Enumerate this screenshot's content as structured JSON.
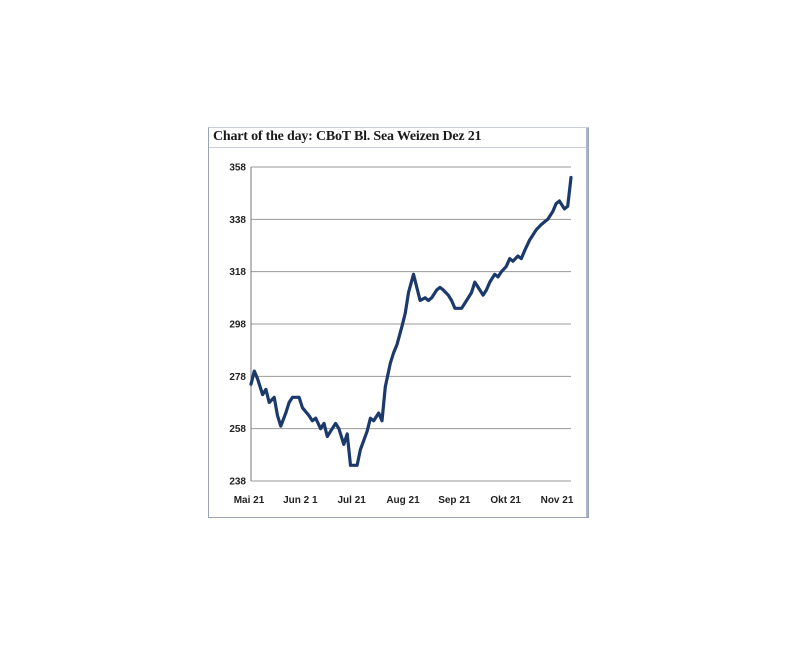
{
  "chart_data": {
    "type": "line",
    "title": "Chart of the day: CBoT Bl. Sea Weizen Dez 21",
    "xlabel": "",
    "ylabel": "",
    "ylim": [
      238,
      358
    ],
    "yticks": [
      238,
      258,
      278,
      298,
      318,
      338,
      358
    ],
    "ytick_labels": [
      "238",
      "258",
      "278",
      "298",
      "318",
      "338",
      "358"
    ],
    "xtick_labels": [
      "Mai 21",
      "Jun 2 1",
      "Jul 21",
      "Aug 21",
      "Sep 21",
      "Okt 21",
      "Nov 21"
    ],
    "grid": "horizontal",
    "line_color": "#1b3a6b",
    "series": [
      {
        "x": [
          "2021-05-03",
          "2021-05-05",
          "2021-05-07",
          "2021-05-10",
          "2021-05-12",
          "2021-05-14",
          "2021-05-17",
          "2021-05-19",
          "2021-05-21",
          "2021-05-24",
          "2021-05-26",
          "2021-05-28",
          "2021-06-01",
          "2021-06-03",
          "2021-06-07",
          "2021-06-09",
          "2021-06-11",
          "2021-06-14",
          "2021-06-16",
          "2021-06-18",
          "2021-06-21",
          "2021-06-23",
          "2021-06-25",
          "2021-06-28",
          "2021-06-30",
          "2021-07-02",
          "2021-07-06",
          "2021-07-08",
          "2021-07-12",
          "2021-07-14",
          "2021-07-16",
          "2021-07-19",
          "2021-07-21",
          "2021-07-23",
          "2021-07-26",
          "2021-07-28",
          "2021-07-30",
          "2021-08-02",
          "2021-08-04",
          "2021-08-06",
          "2021-08-09",
          "2021-08-11",
          "2021-08-13",
          "2021-08-16",
          "2021-08-18",
          "2021-08-20",
          "2021-08-23",
          "2021-08-25",
          "2021-08-27",
          "2021-08-30",
          "2021-09-01",
          "2021-09-03",
          "2021-09-07",
          "2021-09-09",
          "2021-09-13",
          "2021-09-15",
          "2021-09-17",
          "2021-09-20",
          "2021-09-22",
          "2021-09-24",
          "2021-09-27",
          "2021-09-29",
          "2021-10-01",
          "2021-10-04",
          "2021-10-06",
          "2021-10-08",
          "2021-10-11",
          "2021-10-13",
          "2021-10-15",
          "2021-10-18",
          "2021-10-20",
          "2021-10-22",
          "2021-10-25",
          "2021-10-27",
          "2021-10-29",
          "2021-11-01",
          "2021-11-03",
          "2021-11-05",
          "2021-11-08",
          "2021-11-10",
          "2021-11-12"
        ],
        "values": [
          275,
          280,
          277,
          271,
          273,
          268,
          270,
          263,
          259,
          264,
          268,
          270,
          270,
          266,
          263,
          261,
          262,
          258,
          260,
          255,
          258,
          260,
          258,
          252,
          256,
          244,
          244,
          250,
          257,
          262,
          261,
          264,
          261,
          274,
          283,
          287,
          290,
          297,
          302,
          310,
          317,
          312,
          307,
          308,
          307,
          308,
          311,
          312,
          311,
          309,
          307,
          304,
          304,
          306,
          310,
          314,
          312,
          309,
          311,
          314,
          317,
          316,
          318,
          320,
          323,
          322,
          324,
          323,
          326,
          330,
          332,
          334,
          336,
          337,
          338,
          341,
          344,
          345,
          342,
          343,
          354
        ]
      }
    ]
  }
}
